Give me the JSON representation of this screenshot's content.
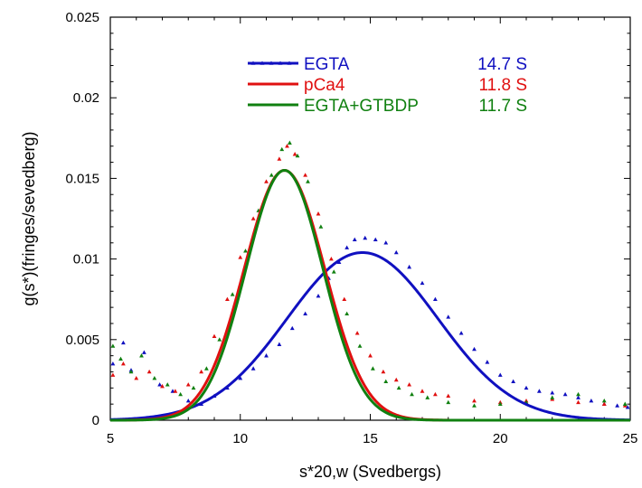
{
  "chart_data": {
    "type": "scatter",
    "title": "",
    "xlabel": "s*20,w (Svedbergs)",
    "ylabel": "g(s*)(fringes/sevedberg)",
    "xlim": [
      5,
      25
    ],
    "ylim": [
      0,
      0.025
    ],
    "x_ticks": [
      "5",
      "10",
      "15",
      "20",
      "25"
    ],
    "y_ticks": [
      "0",
      "0.005",
      "0.01",
      "0.015",
      "0.02",
      "0.025"
    ],
    "grid": false,
    "legend_position": "top-right",
    "series": [
      {
        "name": "EGTA",
        "value_label": "14.7 S",
        "color": "#1010c0",
        "fit": {
          "shape": "gaussian",
          "peak_x": 14.7,
          "peak_y": 0.0104,
          "sigma": 2.9,
          "baseline": 0
        },
        "points": [
          [
            5.1,
            0.0035
          ],
          [
            5.5,
            0.0048
          ],
          [
            5.8,
            0.0031
          ],
          [
            6.3,
            0.0042
          ],
          [
            6.9,
            0.0022
          ],
          [
            7.4,
            0.0018
          ],
          [
            8.0,
            0.0012
          ],
          [
            8.5,
            0.001
          ],
          [
            9.0,
            0.0015
          ],
          [
            9.5,
            0.002
          ],
          [
            10.0,
            0.0026
          ],
          [
            10.5,
            0.0032
          ],
          [
            11.0,
            0.004
          ],
          [
            11.5,
            0.0047
          ],
          [
            12.0,
            0.0057
          ],
          [
            12.5,
            0.0066
          ],
          [
            13.0,
            0.0077
          ],
          [
            13.4,
            0.0088
          ],
          [
            13.8,
            0.0098
          ],
          [
            14.1,
            0.0107
          ],
          [
            14.4,
            0.0112
          ],
          [
            14.8,
            0.0113
          ],
          [
            15.2,
            0.0112
          ],
          [
            15.6,
            0.011
          ],
          [
            16.0,
            0.0104
          ],
          [
            16.5,
            0.0095
          ],
          [
            17.0,
            0.0085
          ],
          [
            17.5,
            0.0075
          ],
          [
            18.0,
            0.0064
          ],
          [
            18.5,
            0.0054
          ],
          [
            19.0,
            0.0044
          ],
          [
            19.5,
            0.0036
          ],
          [
            20.0,
            0.0028
          ],
          [
            20.5,
            0.0024
          ],
          [
            21.0,
            0.002
          ],
          [
            21.5,
            0.0018
          ],
          [
            22.0,
            0.0017
          ],
          [
            22.5,
            0.0016
          ],
          [
            23.0,
            0.0014
          ],
          [
            23.5,
            0.0012
          ],
          [
            24.0,
            0.001
          ],
          [
            24.5,
            0.0009
          ],
          [
            24.9,
            0.0008
          ]
        ]
      },
      {
        "name": "pCa4",
        "value_label": "11.8 S",
        "color": "#e01010",
        "fit": {
          "shape": "gaussian",
          "peak_x": 11.7,
          "peak_y": 0.0155,
          "sigma": 1.55,
          "baseline": 0
        },
        "points": [
          [
            5.1,
            0.0028
          ],
          [
            5.5,
            0.0035
          ],
          [
            6.0,
            0.0026
          ],
          [
            6.5,
            0.003
          ],
          [
            7.0,
            0.0021
          ],
          [
            7.5,
            0.0018
          ],
          [
            8.0,
            0.0022
          ],
          [
            8.5,
            0.003
          ],
          [
            9.0,
            0.0052
          ],
          [
            9.5,
            0.0075
          ],
          [
            10.0,
            0.0101
          ],
          [
            10.5,
            0.0125
          ],
          [
            11.0,
            0.0148
          ],
          [
            11.5,
            0.0162
          ],
          [
            11.8,
            0.017
          ],
          [
            12.1,
            0.0165
          ],
          [
            12.5,
            0.0152
          ],
          [
            13.0,
            0.0128
          ],
          [
            13.5,
            0.01
          ],
          [
            14.0,
            0.0075
          ],
          [
            14.5,
            0.0054
          ],
          [
            15.0,
            0.004
          ],
          [
            15.5,
            0.003
          ],
          [
            16.0,
            0.0025
          ],
          [
            16.5,
            0.0022
          ],
          [
            17.0,
            0.0018
          ],
          [
            17.5,
            0.0016
          ],
          [
            18.0,
            0.0015
          ],
          [
            19.0,
            0.0012
          ],
          [
            20.0,
            0.0011
          ],
          [
            21.0,
            0.0012
          ],
          [
            22.0,
            0.0013
          ],
          [
            23.0,
            0.0011
          ],
          [
            24.0,
            0.001
          ],
          [
            24.8,
            0.0009
          ]
        ]
      },
      {
        "name": "EGTA+GTBDP",
        "value_label": "11.7 S",
        "color": "#108010",
        "fit": {
          "shape": "gaussian",
          "peak_x": 11.7,
          "peak_y": 0.0155,
          "sigma": 1.48,
          "baseline": 0
        },
        "points": [
          [
            5.1,
            0.0046
          ],
          [
            5.4,
            0.0038
          ],
          [
            5.8,
            0.003
          ],
          [
            6.2,
            0.004
          ],
          [
            6.7,
            0.0026
          ],
          [
            7.2,
            0.0022
          ],
          [
            7.7,
            0.0016
          ],
          [
            8.2,
            0.002
          ],
          [
            8.7,
            0.0032
          ],
          [
            9.2,
            0.005
          ],
          [
            9.7,
            0.0078
          ],
          [
            10.2,
            0.0105
          ],
          [
            10.7,
            0.013
          ],
          [
            11.2,
            0.0152
          ],
          [
            11.6,
            0.0168
          ],
          [
            11.9,
            0.0172
          ],
          [
            12.2,
            0.0164
          ],
          [
            12.6,
            0.0148
          ],
          [
            13.1,
            0.012
          ],
          [
            13.6,
            0.0092
          ],
          [
            14.1,
            0.0066
          ],
          [
            14.6,
            0.0046
          ],
          [
            15.1,
            0.0032
          ],
          [
            15.6,
            0.0024
          ],
          [
            16.1,
            0.002
          ],
          [
            16.6,
            0.0016
          ],
          [
            17.2,
            0.0014
          ],
          [
            18.0,
            0.0011
          ],
          [
            19.0,
            0.0009
          ],
          [
            20.0,
            0.001
          ],
          [
            21.0,
            0.0011
          ],
          [
            22.0,
            0.0014
          ],
          [
            23.0,
            0.0016
          ],
          [
            24.0,
            0.0012
          ],
          [
            24.8,
            0.001
          ]
        ]
      }
    ]
  }
}
